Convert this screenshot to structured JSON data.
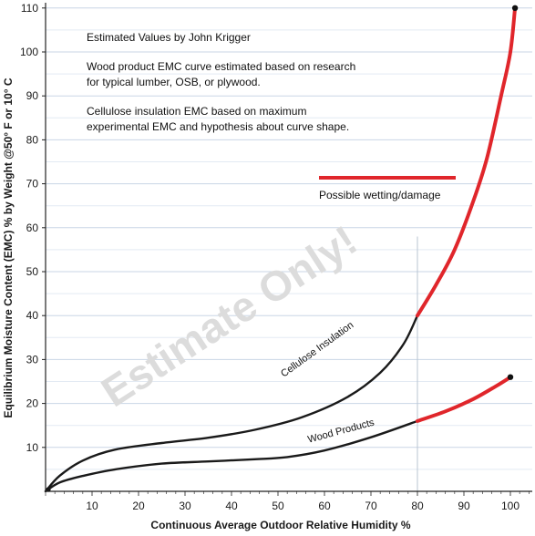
{
  "chart_data": {
    "type": "line",
    "xlabel": "Continuous Average Outdoor Relative Humidity %",
    "ylabel": "Equilibrium Moisture Content (EMC) % by Weight @50° F or 10° C",
    "xlim": [
      0,
      105
    ],
    "ylim": [
      0,
      110
    ],
    "x_ticks": [
      10,
      20,
      30,
      40,
      50,
      60,
      70,
      80,
      90,
      100
    ],
    "y_ticks": [
      10,
      20,
      30,
      40,
      50,
      60,
      70,
      80,
      90,
      100,
      110
    ],
    "grid": "horizontal",
    "notes": [
      "Estimated Values by John Krigger",
      "Wood product EMC curve estimated based on research",
      "for typical lumber, OSB, or plywood.",
      "Cellulose insulation EMC based on maximum",
      "experimental EMC and hypothesis about curve shape."
    ],
    "legend": {
      "label": "Possible wetting/damage",
      "color": "#e0262b",
      "position": "upper-middle"
    },
    "watermark": "Estimate Only!",
    "reference_line_x": 80,
    "series": [
      {
        "name": "Cellulose Insulation",
        "color": "#1a1a1a",
        "damage_color": "#e0262b",
        "damage_from_x": 80,
        "points": [
          [
            0,
            0
          ],
          [
            3,
            3.5
          ],
          [
            8,
            7
          ],
          [
            15,
            9.5
          ],
          [
            25,
            11
          ],
          [
            35,
            12.2
          ],
          [
            45,
            14
          ],
          [
            55,
            16.8
          ],
          [
            65,
            21.5
          ],
          [
            72,
            27
          ],
          [
            77,
            33.5
          ],
          [
            80,
            40
          ],
          [
            84,
            47
          ],
          [
            88,
            55
          ],
          [
            92,
            66
          ],
          [
            95,
            76
          ],
          [
            98,
            90
          ],
          [
            100,
            100
          ],
          [
            101,
            110
          ]
        ]
      },
      {
        "name": "Wood Products",
        "color": "#1a1a1a",
        "damage_color": "#e0262b",
        "damage_from_x": 80,
        "points": [
          [
            0,
            0
          ],
          [
            3,
            2
          ],
          [
            8,
            3.5
          ],
          [
            15,
            5
          ],
          [
            25,
            6.3
          ],
          [
            35,
            6.8
          ],
          [
            45,
            7.3
          ],
          [
            52,
            7.8
          ],
          [
            60,
            9.3
          ],
          [
            70,
            12.3
          ],
          [
            80,
            16
          ],
          [
            86,
            18.2
          ],
          [
            92,
            21
          ],
          [
            97,
            24
          ],
          [
            100,
            26
          ]
        ]
      }
    ]
  }
}
